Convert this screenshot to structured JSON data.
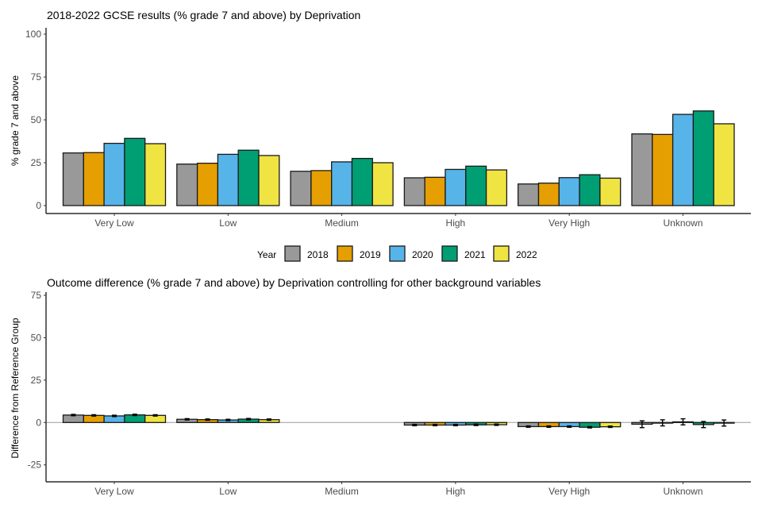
{
  "chart_data": [
    {
      "type": "bar",
      "title": "2018-2022 GCSE results (% grade 7 and above) by Deprivation",
      "xlabel": "",
      "ylabel": "% grade 7 and above",
      "ylim": [
        0,
        100
      ],
      "yticks": [
        0,
        25,
        50,
        75,
        100
      ],
      "grid": false,
      "categories": [
        "Very Low",
        "Low",
        "Medium",
        "High",
        "Very High",
        "Unknown"
      ],
      "series": [
        {
          "name": "2018",
          "color": "#999999",
          "values": [
            30.7,
            24.2,
            20.0,
            16.2,
            12.6,
            41.8
          ]
        },
        {
          "name": "2019",
          "color": "#E69F00",
          "values": [
            30.9,
            24.7,
            20.4,
            16.5,
            13.1,
            41.5
          ]
        },
        {
          "name": "2020",
          "color": "#56B4E9",
          "values": [
            36.3,
            29.9,
            25.5,
            21.1,
            16.3,
            53.2
          ]
        },
        {
          "name": "2021",
          "color": "#009E73",
          "values": [
            39.2,
            32.3,
            27.5,
            23.0,
            18.0,
            55.2
          ]
        },
        {
          "name": "2022",
          "color": "#F0E442",
          "values": [
            36.1,
            29.2,
            25.0,
            20.8,
            16.0,
            47.7
          ]
        }
      ]
    },
    {
      "type": "bar",
      "title": "Outcome difference (% grade 7 and above) by Deprivation controlling for other background variables",
      "xlabel": "",
      "ylabel": "Difference from Reference Group",
      "ylim": [
        -35,
        76
      ],
      "yticks": [
        -25,
        0,
        25,
        50,
        75
      ],
      "grid": false,
      "reference_line": 0,
      "categories": [
        "Very Low",
        "Low",
        "Medium",
        "High",
        "Very High",
        "Unknown"
      ],
      "series": [
        {
          "name": "2018",
          "color": "#999999",
          "values": [
            4.4,
            1.9,
            null,
            -1.5,
            -2.4,
            -1.0
          ],
          "errors": [
            0.4,
            0.4,
            null,
            0.4,
            0.4,
            2.0
          ]
        },
        {
          "name": "2019",
          "color": "#E69F00",
          "values": [
            4.2,
            1.7,
            null,
            -1.5,
            -2.4,
            -0.2
          ],
          "errors": [
            0.4,
            0.4,
            null,
            0.4,
            0.4,
            1.8
          ]
        },
        {
          "name": "2020",
          "color": "#56B4E9",
          "values": [
            3.9,
            1.5,
            null,
            -1.5,
            -2.4,
            0.4
          ],
          "errors": [
            0.4,
            0.4,
            null,
            0.4,
            0.4,
            1.8
          ]
        },
        {
          "name": "2021",
          "color": "#009E73",
          "values": [
            4.5,
            2.0,
            null,
            -1.4,
            -2.8,
            -1.2
          ],
          "errors": [
            0.4,
            0.4,
            null,
            0.4,
            0.4,
            1.8
          ]
        },
        {
          "name": "2022",
          "color": "#F0E442",
          "values": [
            4.2,
            1.7,
            null,
            -1.3,
            -2.5,
            -0.3
          ],
          "errors": [
            0.4,
            0.4,
            null,
            0.4,
            0.4,
            1.8
          ]
        }
      ]
    }
  ],
  "legend": {
    "title": "Year",
    "position": "bottom",
    "items": [
      {
        "label": "2018",
        "color": "#999999"
      },
      {
        "label": "2019",
        "color": "#E69F00"
      },
      {
        "label": "2020",
        "color": "#56B4E9"
      },
      {
        "label": "2021",
        "color": "#009E73"
      },
      {
        "label": "2022",
        "color": "#F0E442"
      }
    ]
  }
}
